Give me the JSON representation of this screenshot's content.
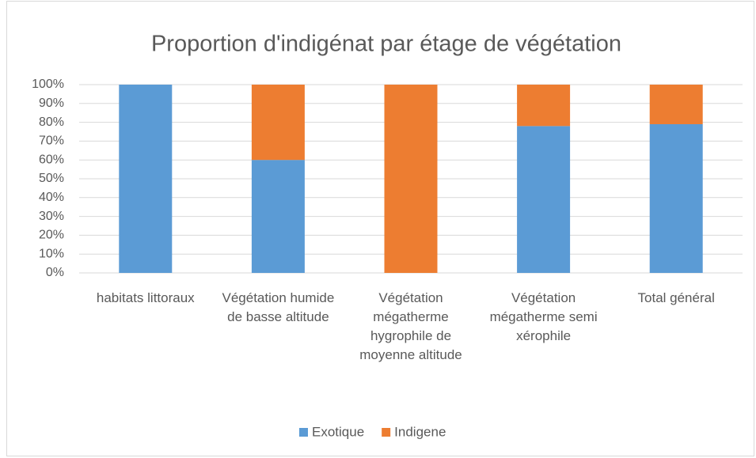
{
  "chart_data": {
    "type": "stacked_bar",
    "title": "Proportion d'indigénat par étage de végétation",
    "categories": [
      "habitats littoraux",
      "Végétation humide de basse altitude",
      "Végétation mégatherme hygrophile de moyenne altitude",
      "Végétation mégatherme semi xérophile",
      "Total général"
    ],
    "series": [
      {
        "name": "Exotique",
        "color": "#5b9bd5",
        "values": [
          100,
          60,
          0,
          78,
          79
        ]
      },
      {
        "name": "Indigene",
        "color": "#ed7d31",
        "values": [
          0,
          40,
          100,
          22,
          21
        ]
      }
    ],
    "ylim": [
      0,
      100
    ],
    "yticks": [
      {
        "value": 0,
        "label": "0%"
      },
      {
        "value": 10,
        "label": "10%"
      },
      {
        "value": 20,
        "label": "20%"
      },
      {
        "value": 30,
        "label": "30%"
      },
      {
        "value": 40,
        "label": "40%"
      },
      {
        "value": 50,
        "label": "50%"
      },
      {
        "value": 60,
        "label": "60%"
      },
      {
        "value": 70,
        "label": "70%"
      },
      {
        "value": 80,
        "label": "80%"
      },
      {
        "value": 90,
        "label": "90%"
      },
      {
        "value": 100,
        "label": "100%"
      }
    ],
    "grid": true,
    "legend": "bottom"
  }
}
